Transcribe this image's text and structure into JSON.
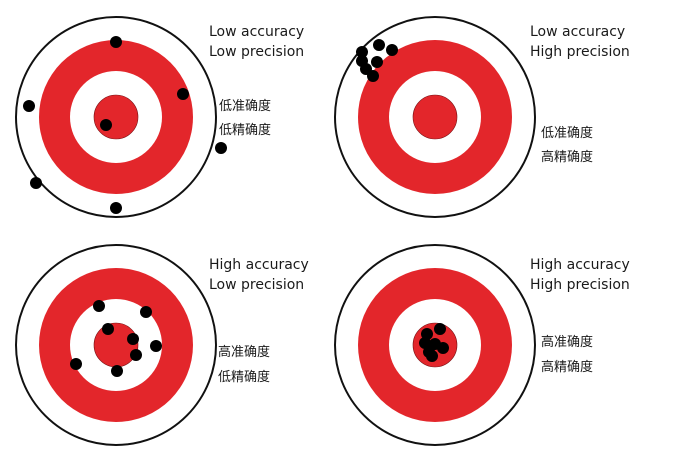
{
  "colors": {
    "ring_red": "#e3262b",
    "ring_white": "#ffffff",
    "outline": "#111111",
    "shot": "#000000",
    "text": "#1a1a1a"
  },
  "panels": [
    {
      "id": "low-acc-low-prec",
      "label_en_1": "Low accuracy",
      "label_en_2": "Low precision",
      "label_cn_1": "低准确度",
      "label_cn_2": "低精确度",
      "shots": [
        [
          0.0,
          -0.75
        ],
        [
          0.67,
          -0.23
        ],
        [
          -0.87,
          -0.11
        ],
        [
          -0.1,
          0.08
        ],
        [
          1.05,
          0.31
        ],
        [
          -0.8,
          0.66
        ],
        [
          0.0,
          0.91
        ]
      ]
    },
    {
      "id": "low-acc-high-prec",
      "label_en_1": "Low accuracy",
      "label_en_2": "High precision",
      "label_cn_1": "低准确度",
      "label_cn_2": "高精确度",
      "shots": [
        [
          -0.73,
          -0.65
        ],
        [
          -0.56,
          -0.72
        ],
        [
          -0.43,
          -0.67
        ],
        [
          -0.58,
          -0.55
        ],
        [
          -0.69,
          -0.48
        ],
        [
          -0.62,
          -0.41
        ],
        [
          -0.73,
          -0.56
        ]
      ]
    },
    {
      "id": "high-acc-low-prec",
      "label_en_1": "High accuracy",
      "label_en_2": "Low precision",
      "label_cn_1": "高准确度",
      "label_cn_2": "低精确度",
      "shots": [
        [
          -0.17,
          -0.39
        ],
        [
          0.3,
          -0.33
        ],
        [
          -0.08,
          -0.16
        ],
        [
          0.17,
          -0.06
        ],
        [
          0.4,
          0.01
        ],
        [
          0.2,
          0.1
        ],
        [
          -0.4,
          0.19
        ],
        [
          0.01,
          0.26
        ]
      ]
    },
    {
      "id": "high-acc-high-prec",
      "label_en_1": "High accuracy",
      "label_en_2": "High precision",
      "label_cn_1": "高准确度",
      "label_cn_2": "高精确度",
      "shots": [
        [
          0.05,
          -0.16
        ],
        [
          -0.08,
          -0.11
        ],
        [
          -0.1,
          -0.02
        ],
        [
          0.0,
          -0.01
        ],
        [
          0.08,
          0.03
        ],
        [
          -0.06,
          0.07
        ],
        [
          -0.03,
          0.11
        ]
      ]
    }
  ]
}
